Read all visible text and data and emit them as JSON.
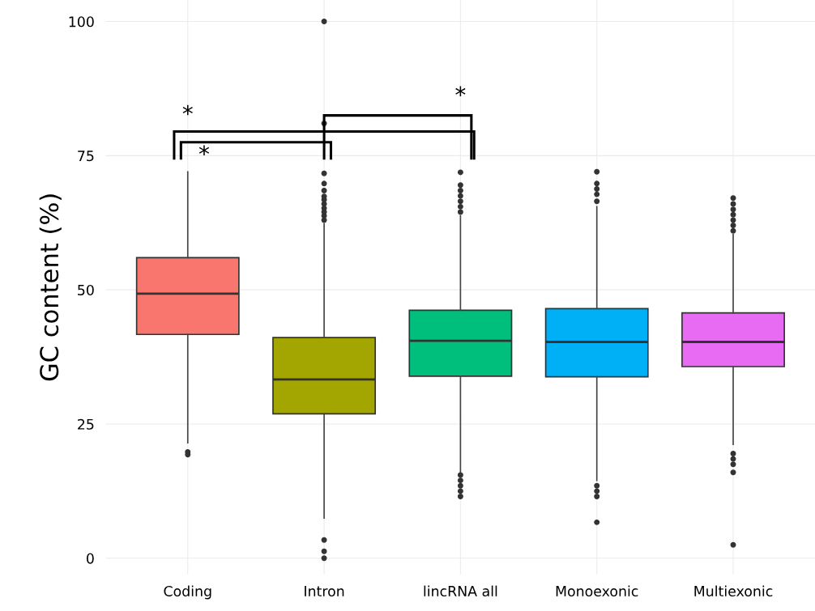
{
  "chart_data": {
    "type": "box",
    "ylabel": "GC content (%)",
    "categories": [
      "Coding",
      "Intron",
      "lincRNA all",
      "Monoexonic",
      "Multiexonic"
    ],
    "colors": [
      "#f8766d",
      "#a3a500",
      "#00bf7d",
      "#00b0f6",
      "#e76bf3"
    ],
    "boxes": [
      {
        "low": 21.5,
        "q1": 41.7,
        "median": 49.3,
        "q3": 56,
        "high": 72,
        "outliers": [
          19.3,
          19.8
        ]
      },
      {
        "low": 7.5,
        "q1": 26.9,
        "median": 33.3,
        "q3": 41.1,
        "high": 62.3,
        "outliers": [
          100,
          81,
          71.7,
          69.8,
          68.5,
          67.4,
          66.8,
          66,
          65.2,
          64.5,
          63.8,
          63,
          3.4,
          1.3,
          0
        ]
      },
      {
        "low": 16,
        "q1": 33.9,
        "median": 40.5,
        "q3": 46.2,
        "high": 63.8,
        "outliers": [
          71.9,
          69.5,
          68.5,
          67.5,
          66.5,
          65.5,
          64.5,
          15.5,
          14.5,
          13.5,
          12.5,
          11.5
        ]
      },
      {
        "low": 14.5,
        "q1": 33.8,
        "median": 40.3,
        "q3": 46.5,
        "high": 65.5,
        "outliers": [
          72,
          69.8,
          68.8,
          67.8,
          66.5,
          13.5,
          12.5,
          11.5,
          6.7
        ]
      },
      {
        "low": 21.2,
        "q1": 35.7,
        "median": 40.3,
        "q3": 45.7,
        "high": 60.3,
        "outliers": [
          67.1,
          66,
          65,
          64,
          63,
          62,
          61,
          19.5,
          18.5,
          17.5,
          16,
          2.5
        ]
      }
    ],
    "ylim": [
      -3,
      104
    ],
    "yticks": [
      0,
      25,
      50,
      75,
      100
    ],
    "grid": true,
    "annotations": [
      "*",
      "*",
      "*"
    ]
  }
}
